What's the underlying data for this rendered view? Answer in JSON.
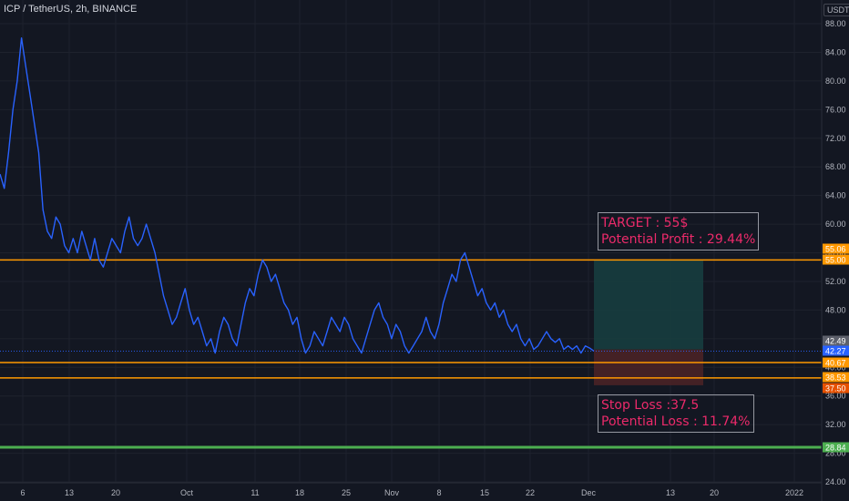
{
  "header": {
    "symbol": "ICP / TetherUS, 2h, BINANCE",
    "currency": "USDT"
  },
  "colors": {
    "background": "#131722",
    "price": "#2962ff",
    "level": "#ff9800",
    "support": "#4caf50",
    "profit_zone": "#173d3f",
    "loss_zone": "#4a2226",
    "annotation_text": "#ec2a6a"
  },
  "annotations": {
    "target": {
      "line1": "TARGET : 55$",
      "line2": "Potential Profit : 29.44%"
    },
    "stop": {
      "line1": "Stop Loss :37.5",
      "line2": "Potential Loss : 11.74%"
    }
  },
  "chart_data": {
    "type": "line",
    "title": "",
    "xlabel": "",
    "ylabel": "",
    "y_axis_side": "right",
    "ylim": [
      23.5,
      90
    ],
    "y_ticks": [
      "88.00",
      "84.00",
      "80.00",
      "76.00",
      "72.00",
      "68.00",
      "64.00",
      "60.00",
      "56.00",
      "52.00",
      "48.00",
      "44.00",
      "40.00",
      "36.00",
      "32.00",
      "28.00",
      "24.00"
    ],
    "x_ticks": [
      "6",
      "13",
      "20",
      "Oct",
      "11",
      "18",
      "25",
      "Nov",
      "8",
      "15",
      "22",
      "Dec",
      "13",
      "20",
      "2022"
    ],
    "grid": true,
    "legend": "none",
    "series": [
      {
        "values": [
          67,
          65,
          70,
          76,
          80,
          86,
          82,
          78,
          74,
          70,
          62,
          59,
          58,
          61,
          60,
          57,
          56,
          58,
          56,
          59,
          57,
          55,
          58,
          55,
          54,
          56,
          58,
          57,
          56,
          59,
          61,
          58,
          57,
          58,
          60,
          58,
          56,
          53,
          50,
          48,
          46,
          47,
          49,
          51,
          48,
          46,
          47,
          45,
          43,
          44,
          42,
          45,
          47,
          46,
          44,
          43,
          46,
          49,
          51,
          50,
          53,
          55,
          54,
          52,
          53,
          51,
          49,
          48,
          46,
          47,
          44,
          42,
          43,
          45,
          44,
          43,
          45,
          47,
          46,
          45,
          47,
          46,
          44,
          43,
          42,
          44,
          46,
          48,
          49,
          47,
          46,
          44,
          46,
          45,
          43,
          42,
          43,
          44,
          45,
          47,
          45,
          44,
          46,
          49,
          51,
          53,
          52,
          55,
          56,
          54,
          52,
          50,
          51,
          49,
          48,
          49,
          47,
          48,
          46,
          45,
          46,
          44,
          43,
          44,
          42.5,
          43,
          44,
          45,
          44,
          43.5,
          44,
          42.5,
          43,
          42.5,
          43,
          42,
          43,
          42.7,
          42.27
        ]
      }
    ],
    "levels": [
      {
        "value": 55.06,
        "label": "55.06",
        "color": "#ff9800"
      },
      {
        "value": 55.0,
        "label": "55.00",
        "color": "#ff9800"
      },
      {
        "value": 42.49,
        "label": "42.49",
        "color": "#5d606b"
      },
      {
        "value": 42.27,
        "label": "42.27",
        "color": "#2962ff"
      },
      {
        "value": 40.67,
        "label": "40.67",
        "color": "#ff9800"
      },
      {
        "value": 38.53,
        "label": "38.53",
        "color": "#ff9800"
      },
      {
        "value": 37.5,
        "label": "37.50",
        "color": "#e65100"
      },
      {
        "value": 28.84,
        "label": "28.84",
        "color": "#4caf50"
      }
    ],
    "position": {
      "entry": 42.49,
      "target": 55.0,
      "stop": 37.5
    }
  }
}
